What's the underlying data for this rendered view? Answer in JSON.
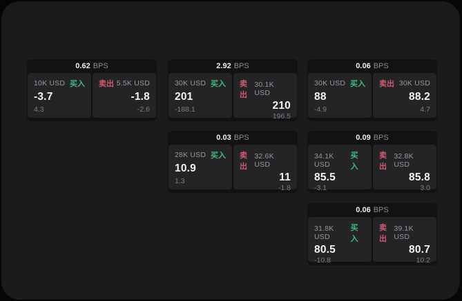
{
  "labels": {
    "bps_unit": "BPS",
    "buy": "买入",
    "sell": "卖出"
  },
  "colors": {
    "buy_green": "#3fba7c",
    "sell_red": "#cd5a6e",
    "page_bg": "#060606",
    "panel_bg": "#1b1b1d",
    "card_bg": "#121214",
    "tile_bg": "#242427"
  },
  "cards": [
    {
      "col": 0,
      "row": 0,
      "bps": "0.62",
      "buy": {
        "amount": "10K USD",
        "price": "-3.7",
        "delta": "4.3"
      },
      "sell": {
        "amount": "5.5K USD",
        "price": "-1.8",
        "delta": "-2.6"
      }
    },
    {
      "col": 1,
      "row": 0,
      "bps": "2.92",
      "buy": {
        "amount": "30K USD",
        "price": "201",
        "delta": "-188.1"
      },
      "sell": {
        "amount": "30.1K USD",
        "price": "210",
        "delta": "196.5"
      }
    },
    {
      "col": 2,
      "row": 0,
      "bps": "0.06",
      "buy": {
        "amount": "30K USD",
        "price": "88",
        "delta": "-4.9"
      },
      "sell": {
        "amount": "30K USD",
        "price": "88.2",
        "delta": "4.7"
      }
    },
    {
      "col": 1,
      "row": 1,
      "bps": "0.03",
      "buy": {
        "amount": "28K USD",
        "price": "10.9",
        "delta": "1.3"
      },
      "sell": {
        "amount": "32.6K USD",
        "price": "11",
        "delta": "-1.8"
      }
    },
    {
      "col": 2,
      "row": 1,
      "bps": "0.09",
      "buy": {
        "amount": "34.1K USD",
        "price": "85.5",
        "delta": "-3.1"
      },
      "sell": {
        "amount": "32.8K USD",
        "price": "85.8",
        "delta": "3.0"
      }
    },
    {
      "col": 2,
      "row": 2,
      "bps": "0.06",
      "buy": {
        "amount": "31.8K USD",
        "price": "80.5",
        "delta": "-10.8"
      },
      "sell": {
        "amount": "39.1K USD",
        "price": "80.7",
        "delta": "10.2"
      }
    }
  ]
}
